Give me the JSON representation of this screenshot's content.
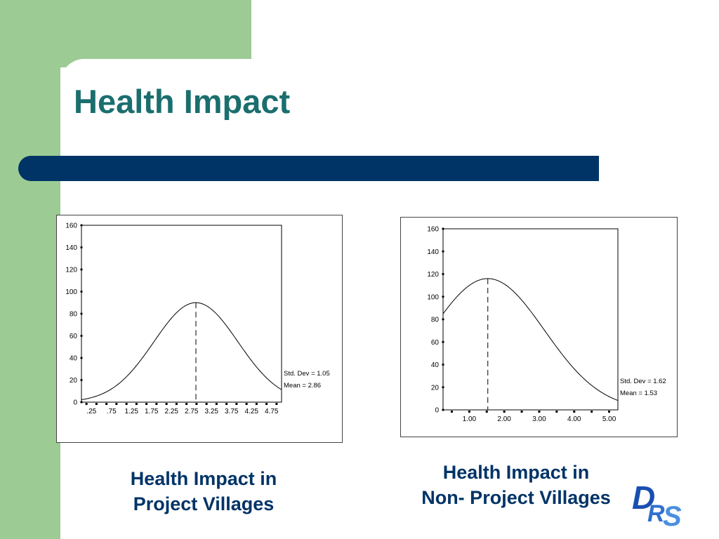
{
  "slide": {
    "title": "Health Impact",
    "caption_1": [
      "Health Impact in",
      "Project Villages"
    ],
    "caption_2": [
      "Health Impact in",
      "Non- Project Villages"
    ],
    "logo_text": "DRS"
  },
  "colors": {
    "accent_green": "#9ccc94",
    "title_teal": "#1b6e6e",
    "navy": "#003366"
  },
  "chart_data": [
    {
      "type": "line",
      "title": "",
      "xlabel": "",
      "ylabel": "",
      "ylim": [
        0,
        160
      ],
      "y_ticks": [
        0,
        20,
        40,
        60,
        80,
        100,
        120,
        140,
        160
      ],
      "x_ticks": [
        0.25,
        0.75,
        1.25,
        1.75,
        2.25,
        2.75,
        3.25,
        3.75,
        4.25,
        4.75
      ],
      "x_tick_labels": [
        ".25",
        ".75",
        "1.25",
        "1.75",
        "2.25",
        "2.75",
        "3.25",
        "3.75",
        "4.25",
        "4.75"
      ],
      "xlim": [
        0.0,
        5.0
      ],
      "curve": "normal",
      "peak_value": 90,
      "mean": 2.86,
      "std_dev": 1.05,
      "annotations": [
        "Std. Dev = 1.05",
        "Mean = 2.86"
      ],
      "grid": false
    },
    {
      "type": "line",
      "title": "",
      "xlabel": "",
      "ylabel": "",
      "ylim": [
        0,
        160
      ],
      "y_ticks": [
        0,
        20,
        40,
        60,
        80,
        100,
        120,
        140,
        160
      ],
      "x_ticks": [
        1.0,
        2.0,
        3.0,
        4.0,
        5.0
      ],
      "x_tick_labels": [
        "1.00",
        "2.00",
        "3.00",
        "4.00",
        "5.00"
      ],
      "xlim": [
        0.25,
        5.25
      ],
      "curve": "normal",
      "peak_value": 116,
      "mean": 1.53,
      "std_dev": 1.62,
      "annotations": [
        "Std. Dev = 1.62",
        "Mean = 1.53"
      ],
      "grid": false
    }
  ]
}
